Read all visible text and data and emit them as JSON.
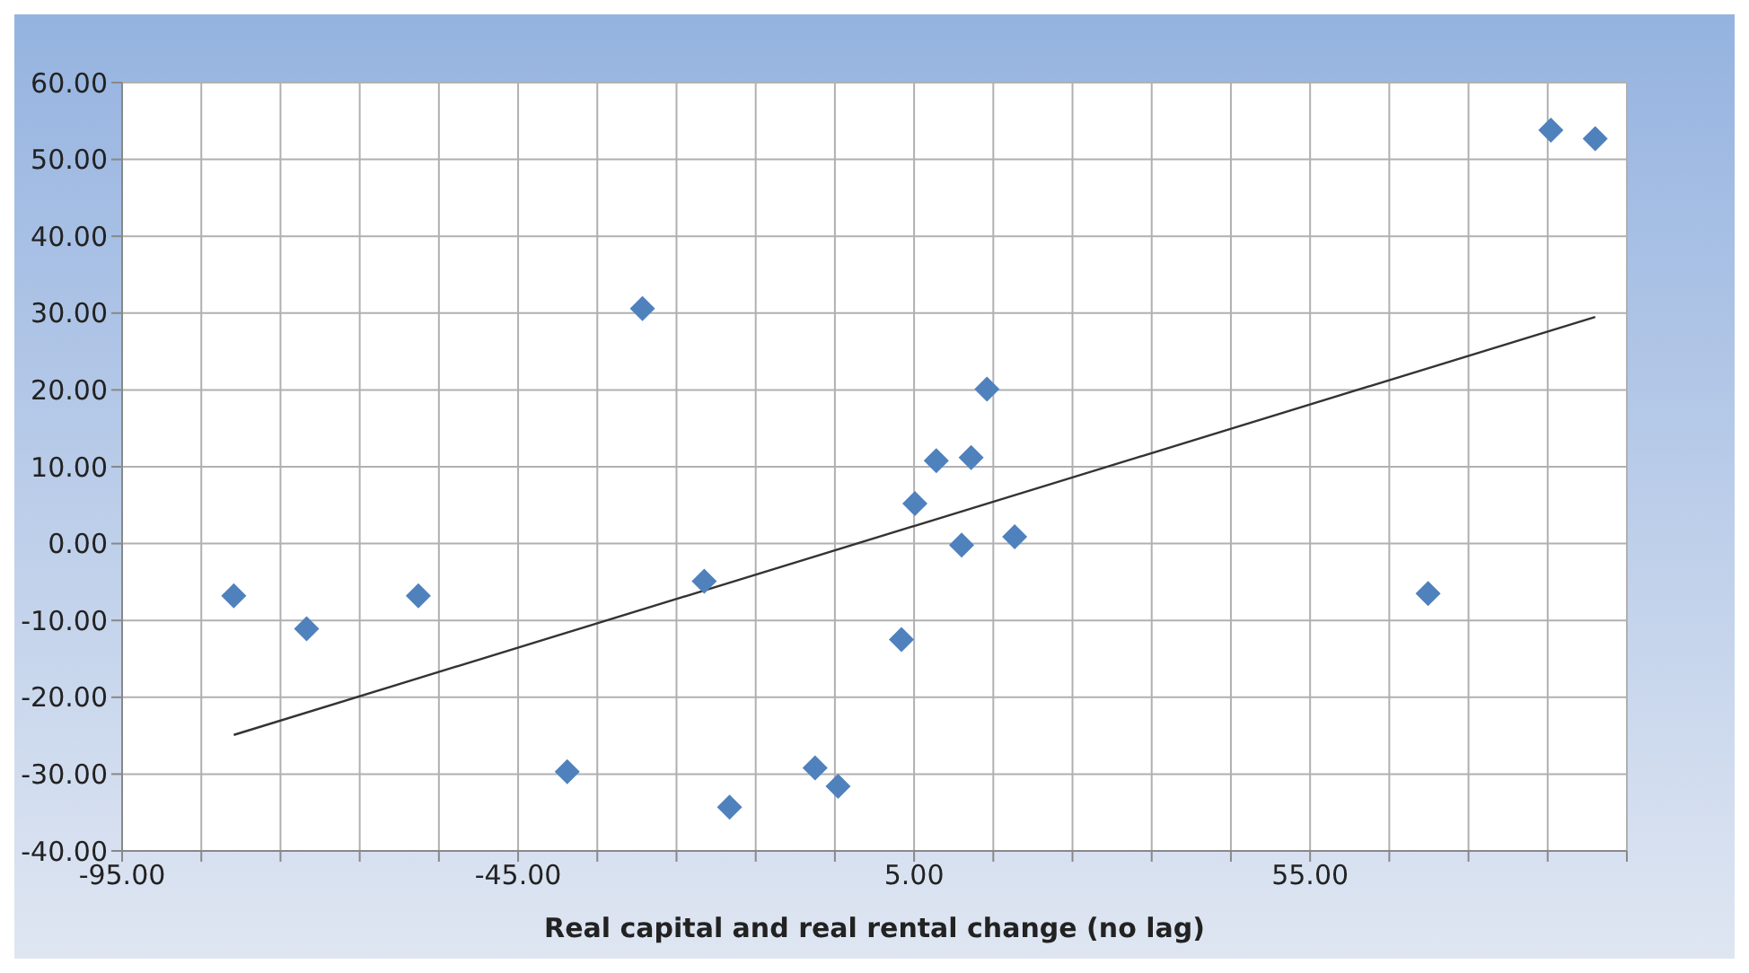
{
  "chart_data": {
    "type": "scatter",
    "xlabel": "Real capital and real rental change (no lag)",
    "xlim": [
      -95,
      95
    ],
    "xticks": [
      {
        "value": -95,
        "label": "-95.00"
      },
      {
        "value": -85,
        "label": null
      },
      {
        "value": -75,
        "label": null
      },
      {
        "value": -65,
        "label": null
      },
      {
        "value": -55,
        "label": null
      },
      {
        "value": -45,
        "label": "-45.00"
      },
      {
        "value": -35,
        "label": null
      },
      {
        "value": -25,
        "label": null
      },
      {
        "value": -15,
        "label": null
      },
      {
        "value": -5,
        "label": null
      },
      {
        "value": 5,
        "label": "5.00"
      },
      {
        "value": 15,
        "label": null
      },
      {
        "value": 25,
        "label": null
      },
      {
        "value": 35,
        "label": null
      },
      {
        "value": 45,
        "label": null
      },
      {
        "value": 55,
        "label": "55.00"
      },
      {
        "value": 65,
        "label": null
      },
      {
        "value": 75,
        "label": null
      },
      {
        "value": 85,
        "label": null
      },
      {
        "value": 95,
        "label": null
      }
    ],
    "ylim": [
      -40,
      60
    ],
    "yticks": [
      {
        "value": -40,
        "label": "-40.00"
      },
      {
        "value": -30,
        "label": "-30.00"
      },
      {
        "value": -20,
        "label": "-20.00"
      },
      {
        "value": -10,
        "label": "-10.00"
      },
      {
        "value": 0,
        "label": "0.00"
      },
      {
        "value": 10,
        "label": "10.00"
      },
      {
        "value": 20,
        "label": "20.00"
      },
      {
        "value": 30,
        "label": "30.00"
      },
      {
        "value": 40,
        "label": "40.00"
      },
      {
        "value": 50,
        "label": "50.00"
      },
      {
        "value": 60,
        "label": "60.00"
      }
    ],
    "grid": true,
    "legend": false,
    "series": [
      {
        "color": "#4f81bd",
        "marker": "diamond",
        "x": [
          -80.9,
          -71.7,
          -57.6,
          -38.8,
          -29.3,
          -21.5,
          -18.3,
          -7.5,
          -4.6,
          3.4,
          5.1,
          7.8,
          11.0,
          12.2,
          14.2,
          17.7,
          69.9,
          85.4,
          91.0
        ],
        "values": [
          -6.8,
          -11.1,
          -6.8,
          -29.7,
          30.6,
          -4.9,
          -34.3,
          -29.2,
          -31.6,
          -12.5,
          5.2,
          10.8,
          -0.2,
          11.2,
          20.1,
          0.9,
          -6.5,
          53.8,
          52.7
        ]
      },
      {
        "type": "line",
        "color": "#333333",
        "marker": "none",
        "x": [
          -80.9,
          91.0
        ],
        "values": [
          -24.9,
          29.5
        ]
      }
    ]
  }
}
